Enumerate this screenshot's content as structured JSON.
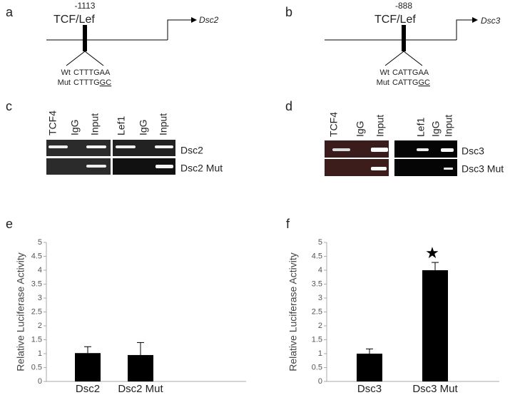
{
  "panels": {
    "a": {
      "label": "a",
      "position": "-1113",
      "factor": "TCF/Lef",
      "gene": "Dsc2",
      "wt_label": "Wt",
      "wt_seq": "CTTTGAA",
      "mut_label": "Mut",
      "mut_seq_plain": "CTTTG",
      "mut_seq_underlined": "GC"
    },
    "b": {
      "label": "b",
      "position": "-888",
      "factor": "TCF/Lef",
      "gene": "Dsc3",
      "wt_label": "Wt",
      "wt_seq": "CATTGAA",
      "mut_label": "Mut",
      "mut_seq_plain": "CATTG",
      "mut_seq_underlined": "GC"
    },
    "c": {
      "label": "c",
      "lanes": [
        "TCF4",
        "IgG",
        "Input",
        "Lef1",
        "IgG",
        "Input"
      ],
      "rows": [
        "Dsc2",
        "Dsc2 Mut"
      ]
    },
    "d": {
      "label": "d",
      "lanes": [
        "TCF4",
        "IgG",
        "Input",
        "Lef1",
        "IgG",
        "Input"
      ],
      "rows": [
        "Dsc3",
        "Dsc3 Mut"
      ]
    }
  },
  "chart_data": [
    {
      "type": "bar",
      "panel_label": "e",
      "ylabel": "Relative Luciferase Activity",
      "categories": [
        "Dsc2",
        "Dsc2 Mut"
      ],
      "values": [
        1.02,
        0.95
      ],
      "errors": [
        0.23,
        0.45
      ],
      "color": "#000000",
      "ylim": [
        0,
        5
      ],
      "yticks": [
        0,
        0.5,
        1,
        1.5,
        2,
        2.5,
        3,
        3.5,
        4,
        4.5,
        5
      ]
    },
    {
      "type": "bar",
      "panel_label": "f",
      "ylabel": "Relative Luciferase Activity",
      "categories": [
        "Dsc3",
        "Dsc3 Mut"
      ],
      "values": [
        1.0,
        4.0
      ],
      "errors": [
        0.17,
        0.28
      ],
      "color": "#000000",
      "ylim": [
        0,
        5
      ],
      "yticks": [
        0,
        0.5,
        1,
        1.5,
        2,
        2.5,
        3,
        3.5,
        4,
        4.5,
        5
      ],
      "annotation": "★"
    }
  ]
}
